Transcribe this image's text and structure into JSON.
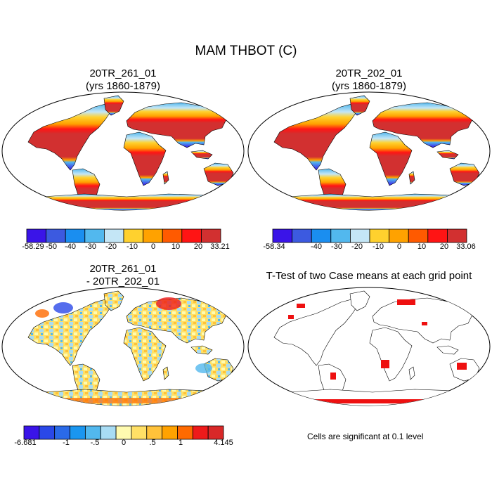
{
  "main_title": "MAM THBOT (C)",
  "panels": [
    {
      "id": "case1",
      "title_line1": "20TR_261_01",
      "title_line2": "(yrs 1860-1879)",
      "colorbar": {
        "colors": [
          "#3a14e8",
          "#3c5ae0",
          "#1a8ef0",
          "#52b8ee",
          "#c4e6f6",
          "#ffd12e",
          "#ffa200",
          "#ff5a00",
          "#ff1414",
          "#d23030"
        ],
        "labels": [
          "-58.29",
          "-50",
          "-40",
          "-30",
          "-20",
          "-10",
          "0",
          "10",
          "20",
          "33.21"
        ]
      }
    },
    {
      "id": "case2",
      "title_line1": "20TR_202_01",
      "title_line2": "(yrs 1860-1879)",
      "colorbar": {
        "colors": [
          "#3a14e8",
          "#3c5ae0",
          "#1a8ef0",
          "#52b8ee",
          "#c4e6f6",
          "#ffd12e",
          "#ffa200",
          "#ff5a00",
          "#ff1414",
          "#d23030"
        ],
        "labels": [
          "-58.34",
          "",
          "-40",
          "-30",
          "-20",
          "-10",
          "0",
          "10",
          "20",
          "33.06"
        ]
      }
    },
    {
      "id": "diff",
      "title_line1": "20TR_261_01",
      "title_line2": "- 20TR_202_01",
      "colorbar": {
        "colors": [
          "#3a14e8",
          "#2a48e8",
          "#2a6ae8",
          "#1a96f0",
          "#52b8ee",
          "#a8dcf4",
          "#fffbb0",
          "#ffe066",
          "#ffc23a",
          "#ffa200",
          "#ff6a00",
          "#ee1a1a",
          "#d82828"
        ],
        "labels": [
          "-6.681",
          "",
          "-1",
          "",
          "-.5",
          "",
          "0",
          "",
          "",
          ".5",
          "",
          "1",
          "",
          "4.145"
        ]
      }
    },
    {
      "id": "ttest",
      "title_line1": "T-Test of two Case means at each grid point",
      "note": "Cells are significant at 0.1 level"
    }
  ]
}
